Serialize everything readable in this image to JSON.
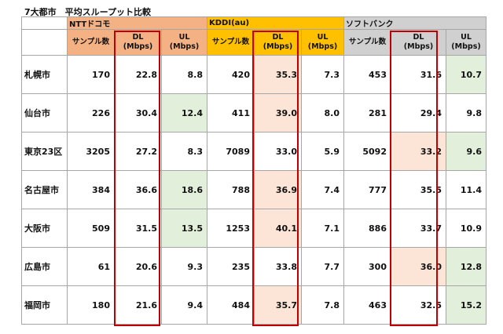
{
  "title": "7大都市　平均スループット比較",
  "header": {
    "carriers": [
      {
        "name": "NTTドコモ",
        "color": "#f4b183"
      },
      {
        "name": "KDDI(au)",
        "color": "#ffc000"
      },
      {
        "name": "ソフトバンク",
        "color": "#d0d0d0"
      }
    ],
    "col_sample": "サンプル数",
    "col_dl": [
      "DL",
      "(Mbps)"
    ],
    "col_ul": [
      "UL",
      "(Mbps)"
    ]
  },
  "highlight_colors": {
    "dl": "#fce4d6",
    "ul": "#e2efda",
    "box": "#c00000"
  },
  "rows": [
    {
      "city": "札幌市",
      "values": [
        [
          "170",
          "22.8",
          "8.8"
        ],
        [
          "420",
          "35.3",
          "7.3"
        ],
        [
          "453",
          "31.6",
          "10.7"
        ]
      ],
      "hl": [
        [
          "",
          "",
          ""
        ],
        [
          "",
          "dl",
          ""
        ],
        [
          "",
          "",
          "ul"
        ]
      ]
    },
    {
      "city": "仙台市",
      "values": [
        [
          "226",
          "30.4",
          "12.4"
        ],
        [
          "411",
          "39.0",
          "8.0"
        ],
        [
          "281",
          "29.4",
          "9.8"
        ]
      ],
      "hl": [
        [
          "",
          "",
          "ul"
        ],
        [
          "",
          "dl",
          ""
        ],
        [
          "",
          "",
          ""
        ]
      ]
    },
    {
      "city": "東京23区",
      "values": [
        [
          "3205",
          "27.2",
          "8.3"
        ],
        [
          "7089",
          "33.0",
          "5.9"
        ],
        [
          "5092",
          "33.2",
          "9.6"
        ]
      ],
      "hl": [
        [
          "",
          "",
          ""
        ],
        [
          "",
          "",
          ""
        ],
        [
          "",
          "dl",
          "ul"
        ]
      ]
    },
    {
      "city": "名古屋市",
      "values": [
        [
          "384",
          "36.6",
          "18.6"
        ],
        [
          "788",
          "36.9",
          "7.4"
        ],
        [
          "777",
          "35.5",
          "11.4"
        ]
      ],
      "hl": [
        [
          "",
          "",
          "ul"
        ],
        [
          "",
          "dl",
          ""
        ],
        [
          "",
          "",
          ""
        ]
      ]
    },
    {
      "city": "大阪市",
      "values": [
        [
          "509",
          "31.5",
          "13.5"
        ],
        [
          "1253",
          "40.1",
          "7.1"
        ],
        [
          "886",
          "33.7",
          "10.9"
        ]
      ],
      "hl": [
        [
          "",
          "",
          "ul"
        ],
        [
          "",
          "dl",
          ""
        ],
        [
          "",
          "",
          ""
        ]
      ]
    },
    {
      "city": "広島市",
      "values": [
        [
          "61",
          "20.6",
          "9.3"
        ],
        [
          "235",
          "33.8",
          "7.7"
        ],
        [
          "300",
          "36.0",
          "12.8"
        ]
      ],
      "hl": [
        [
          "",
          "",
          ""
        ],
        [
          "",
          "",
          ""
        ],
        [
          "",
          "dl",
          "ul"
        ]
      ]
    },
    {
      "city": "福岡市",
      "values": [
        [
          "180",
          "21.6",
          "9.4"
        ],
        [
          "484",
          "35.7",
          "7.8"
        ],
        [
          "463",
          "32.5",
          "15.2"
        ]
      ],
      "hl": [
        [
          "",
          "",
          ""
        ],
        [
          "",
          "dl",
          ""
        ],
        [
          "",
          "",
          "ul"
        ]
      ]
    }
  ]
}
